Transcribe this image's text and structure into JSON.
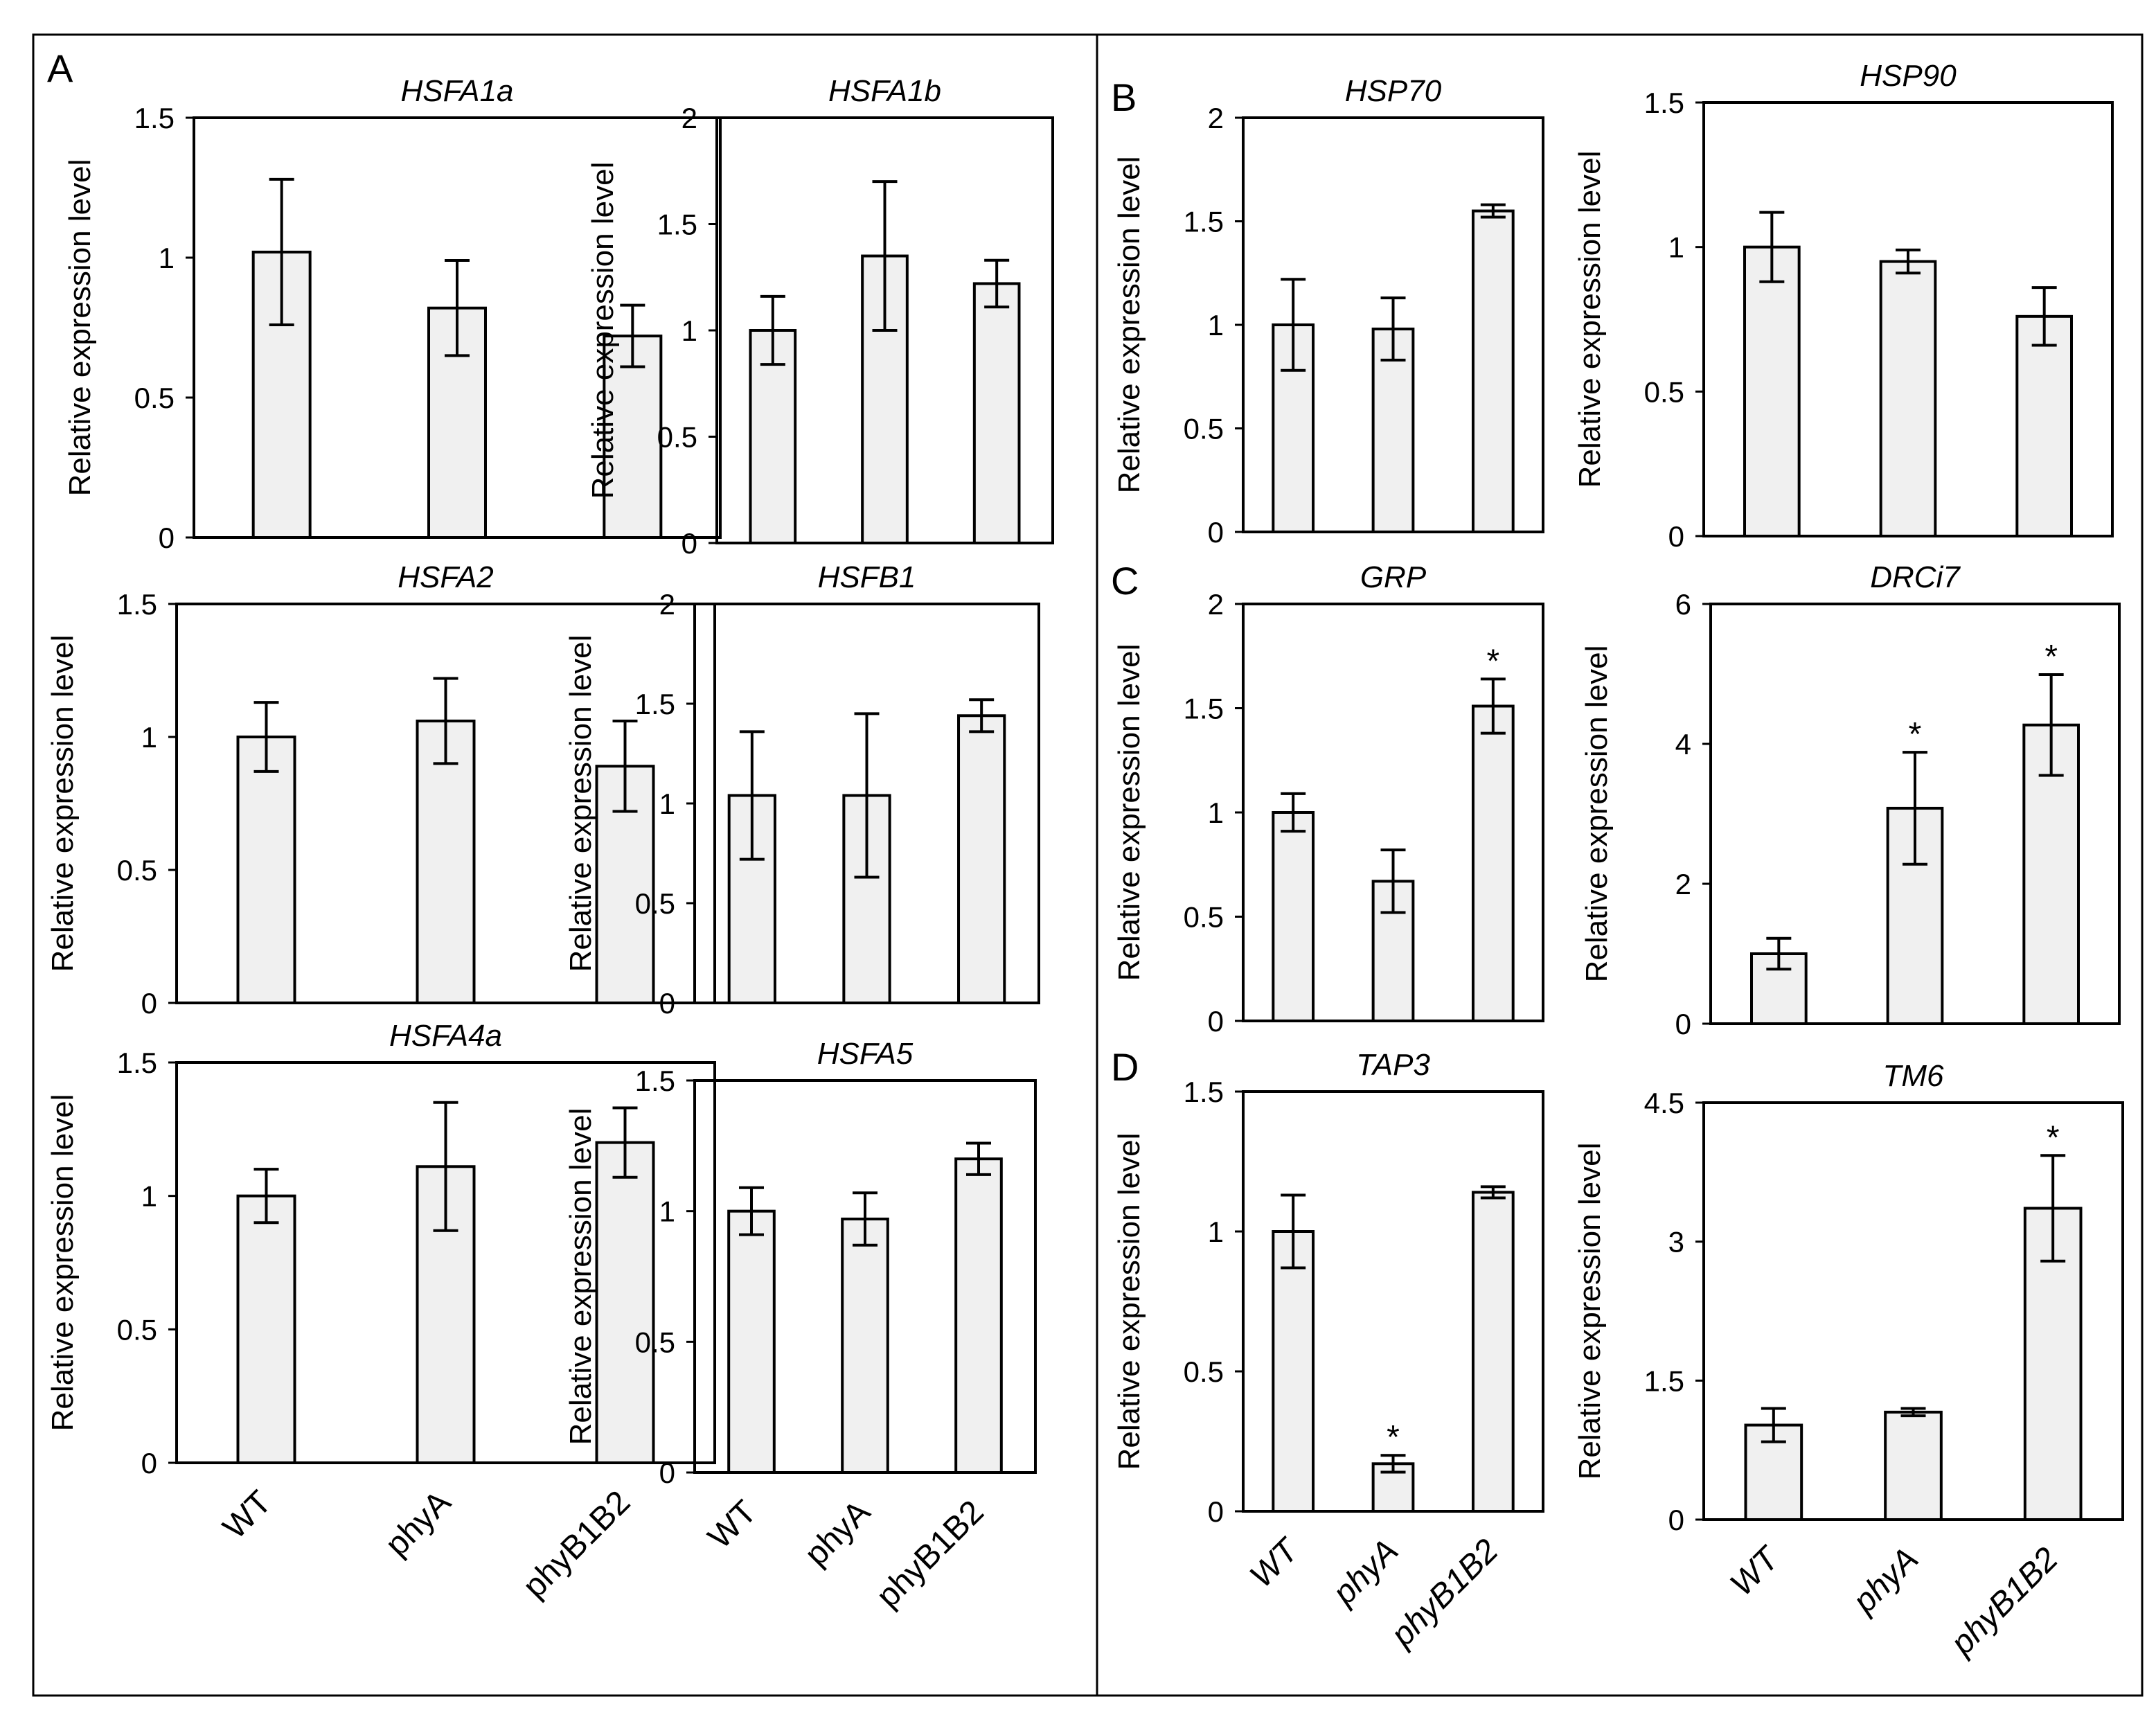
{
  "figure": {
    "panel_labels": [
      "A",
      "B",
      "C",
      "D"
    ],
    "categories_upright": [
      "WT",
      "phyA",
      "phyB1B2"
    ],
    "categories_italic": [
      "WT",
      "phyA",
      "phyB1B2"
    ]
  },
  "chart_data": [
    {
      "id": "hsfa1a",
      "panel": "A",
      "type": "bar",
      "title": "HSFA1a",
      "ylabel": "Relative  expression level",
      "categories": [
        "WT",
        "phyA",
        "phyB1B2"
      ],
      "values": [
        1.02,
        0.82,
        0.72
      ],
      "errors": [
        0.26,
        0.17,
        0.11
      ],
      "significant": [
        false,
        false,
        false
      ],
      "ylim": [
        0,
        1.5
      ],
      "yticks": [
        0,
        0.5,
        1,
        1.5
      ],
      "ytick_labels": [
        "0",
        "0.5",
        "1",
        "1.5"
      ],
      "x_tick_labels_shown": false
    },
    {
      "id": "hsfa1b",
      "panel": "A",
      "type": "bar",
      "title": "HSFA1b",
      "ylabel": "Relative expression level",
      "categories": [
        "WT",
        "phyA",
        "phyB1B2"
      ],
      "values": [
        1.0,
        1.35,
        1.22
      ],
      "errors": [
        0.16,
        0.35,
        0.11
      ],
      "significant": [
        false,
        false,
        false
      ],
      "ylim": [
        0,
        2
      ],
      "yticks": [
        0,
        0.5,
        1,
        1.5,
        2
      ],
      "ytick_labels": [
        "0",
        "0.5",
        "1",
        "1.5",
        "2"
      ],
      "x_tick_labels_shown": false
    },
    {
      "id": "hsfa2",
      "panel": "A",
      "type": "bar",
      "title": "HSFA2",
      "ylabel": "Relative  expression level",
      "categories": [
        "WT",
        "phyA",
        "phyB1B2"
      ],
      "values": [
        1.0,
        1.06,
        0.89
      ],
      "errors": [
        0.13,
        0.16,
        0.17
      ],
      "significant": [
        false,
        false,
        false
      ],
      "ylim": [
        0,
        1.5
      ],
      "yticks": [
        0,
        0.5,
        1,
        1.5
      ],
      "ytick_labels": [
        "0",
        "0.5",
        "1",
        "1.5"
      ],
      "x_tick_labels_shown": false
    },
    {
      "id": "hsfb1",
      "panel": "A",
      "type": "bar",
      "title": "HSFB1",
      "ylabel": "Relative expression level",
      "categories": [
        "WT",
        "phyA",
        "phyB1B2"
      ],
      "values": [
        1.04,
        1.04,
        1.44
      ],
      "errors": [
        0.32,
        0.41,
        0.08
      ],
      "significant": [
        false,
        false,
        false
      ],
      "ylim": [
        0,
        2
      ],
      "yticks": [
        0,
        0.5,
        1,
        1.5,
        2
      ],
      "ytick_labels": [
        "0",
        "0.5",
        "1",
        "1.5",
        "2"
      ],
      "x_tick_labels_shown": false
    },
    {
      "id": "hsfa4a",
      "panel": "A",
      "type": "bar",
      "title": "HSFA4a",
      "ylabel": "Relative  expression level",
      "categories": [
        "WT",
        "phyA",
        "phyB1B2"
      ],
      "values": [
        1.0,
        1.11,
        1.2
      ],
      "errors": [
        0.1,
        0.24,
        0.13
      ],
      "significant": [
        false,
        false,
        false
      ],
      "ylim": [
        0,
        1.5
      ],
      "yticks": [
        0,
        0.5,
        1,
        1.5
      ],
      "ytick_labels": [
        "0",
        "0.5",
        "1",
        "1.5"
      ],
      "x_tick_labels_shown": true,
      "x_tick_style": "upright"
    },
    {
      "id": "hsfa5",
      "panel": "A",
      "type": "bar",
      "title": "HSFA5",
      "ylabel": "Relative expression level",
      "categories": [
        "WT",
        "phyA",
        "phyB1B2"
      ],
      "values": [
        1.0,
        0.97,
        1.2
      ],
      "errors": [
        0.09,
        0.1,
        0.06
      ],
      "significant": [
        false,
        false,
        false
      ],
      "ylim": [
        0,
        1.5
      ],
      "yticks": [
        0,
        0.5,
        1,
        1.5
      ],
      "ytick_labels": [
        "0",
        "0.5",
        "1",
        "1.5"
      ],
      "x_tick_labels_shown": true,
      "x_tick_style": "upright"
    },
    {
      "id": "hsp70",
      "panel": "B",
      "type": "bar",
      "title": "HSP70",
      "ylabel": "Relative  expression level",
      "categories": [
        "WT",
        "phyA",
        "phyB1B2"
      ],
      "values": [
        1.0,
        0.98,
        1.55
      ],
      "errors": [
        0.22,
        0.15,
        0.03
      ],
      "significant": [
        false,
        false,
        false
      ],
      "ylim": [
        0,
        2
      ],
      "yticks": [
        0,
        0.5,
        1,
        1.5,
        2
      ],
      "ytick_labels": [
        "0",
        "0.5",
        "1",
        "1.5",
        "2"
      ],
      "x_tick_labels_shown": false
    },
    {
      "id": "hsp90",
      "panel": "B",
      "type": "bar",
      "title": "HSP90",
      "ylabel": "Relative expression level",
      "categories": [
        "WT",
        "phyA",
        "phyB1B2"
      ],
      "values": [
        1.0,
        0.95,
        0.76
      ],
      "errors": [
        0.12,
        0.04,
        0.1
      ],
      "significant": [
        false,
        false,
        false
      ],
      "ylim": [
        0,
        1.5
      ],
      "yticks": [
        0,
        0.5,
        1,
        1.5
      ],
      "ytick_labels": [
        "0",
        "0.5",
        "1",
        "1.5"
      ],
      "x_tick_labels_shown": false
    },
    {
      "id": "grp",
      "panel": "C",
      "type": "bar",
      "title": "GRP",
      "ylabel": "Relative  expression level",
      "categories": [
        "WT",
        "phyA",
        "phyB1B2"
      ],
      "values": [
        1.0,
        0.67,
        1.51
      ],
      "errors": [
        0.09,
        0.15,
        0.13
      ],
      "significant": [
        false,
        false,
        true
      ],
      "significance_marker": "*",
      "ylim": [
        0,
        2
      ],
      "yticks": [
        0,
        0.5,
        1,
        1.5,
        2
      ],
      "ytick_labels": [
        "0",
        "0.5",
        "1",
        "1.5",
        "2"
      ],
      "x_tick_labels_shown": false
    },
    {
      "id": "drci7",
      "panel": "C",
      "type": "bar",
      "title": "DRCi7",
      "ylabel": "Relative expression level",
      "categories": [
        "WT",
        "phyA",
        "phyB1B2"
      ],
      "values": [
        1.0,
        3.08,
        4.27
      ],
      "errors": [
        0.22,
        0.8,
        0.72
      ],
      "significant": [
        false,
        true,
        true
      ],
      "significance_marker": "*",
      "ylim": [
        0,
        6
      ],
      "yticks": [
        0,
        2,
        4,
        6
      ],
      "ytick_labels": [
        "0",
        "2",
        "4",
        "6"
      ],
      "x_tick_labels_shown": false
    },
    {
      "id": "tap3",
      "panel": "D",
      "type": "bar",
      "title": "TAP3",
      "ylabel": "Relative  expression level",
      "categories": [
        "WT",
        "phyA",
        "phyB1B2"
      ],
      "values": [
        1.0,
        0.17,
        1.14
      ],
      "errors": [
        0.13,
        0.03,
        0.02
      ],
      "significant": [
        false,
        true,
        false
      ],
      "significance_marker": "*",
      "ylim": [
        0,
        1.5
      ],
      "yticks": [
        0,
        0.5,
        1,
        1.5
      ],
      "ytick_labels": [
        "0",
        "0.5",
        "1",
        "1.5"
      ],
      "x_tick_labels_shown": true,
      "x_tick_style": "italic"
    },
    {
      "id": "tm6",
      "panel": "D",
      "type": "bar",
      "title": "TM6",
      "ylabel": "Relative expression level",
      "categories": [
        "WT",
        "phyA",
        "phyB1B2"
      ],
      "values": [
        1.02,
        1.16,
        3.36
      ],
      "errors": [
        0.18,
        0.04,
        0.57
      ],
      "significant": [
        false,
        false,
        true
      ],
      "significance_marker": "*",
      "ylim": [
        0,
        4.5
      ],
      "yticks": [
        0,
        1.5,
        3,
        4.5
      ],
      "ytick_labels": [
        "0",
        "1.5",
        "3",
        "4.5"
      ],
      "x_tick_labels_shown": true,
      "x_tick_style": "italic"
    }
  ]
}
